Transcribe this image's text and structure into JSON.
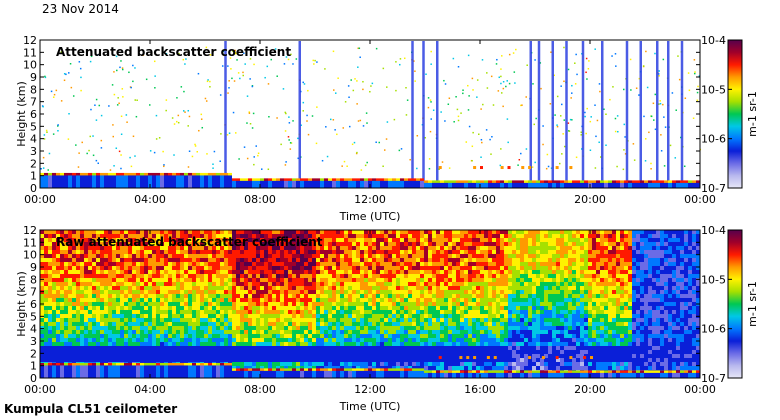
{
  "header": {
    "date": "23 Nov 2014"
  },
  "footer": {
    "instrument": "Kumpula CL51 ceilometer"
  },
  "colorbar": {
    "ticks": [
      "10-4",
      "10-5",
      "10-6",
      "10-7"
    ],
    "unit": "m-1 sr-1",
    "colors": [
      "#e8e8f8",
      "#b8b8ee",
      "#6b6be6",
      "#0a1fd8",
      "#0078ff",
      "#00c8e6",
      "#00c853",
      "#a6e000",
      "#fff200",
      "#ff9a00",
      "#ff1a00",
      "#a0002a",
      "#56004c"
    ]
  },
  "chart_data": [
    {
      "type": "heatmap",
      "title": "Attenuated backscatter coefficient",
      "xlabel": "Time (UTC)",
      "ylabel": "Height (km)",
      "xlim": [
        0,
        24
      ],
      "ylim": [
        0,
        12
      ],
      "x_ticks": [
        "00:00",
        "04:00",
        "08:00",
        "12:00",
        "16:00",
        "20:00",
        "00:00"
      ],
      "y_ticks": [
        "0",
        "1",
        "2",
        "3",
        "4",
        "5",
        "6",
        "7",
        "8",
        "9",
        "10",
        "11",
        "12"
      ],
      "color_scale": "log",
      "color_range": [
        1e-07,
        0.0001
      ],
      "color_unit": "m-1 sr-1",
      "features": {
        "boundary_layer_top_km": 1.1,
        "cloud_base_layer_km": 1.7,
        "cloud_base_layer_time_range_h": [
          14.5,
          20.2
        ],
        "precipitation_streak_times_h": [
          6.7,
          9.4,
          13.5,
          13.9,
          14.4,
          17.8,
          18.1,
          18.6,
          19.1,
          19.7,
          20.4,
          21.3,
          21.8,
          22.4,
          22.8,
          23.3
        ]
      }
    },
    {
      "type": "heatmap",
      "title": "Raw attenuated backscatter coefficient",
      "xlabel": "Time (UTC)",
      "ylabel": "Height (km)",
      "xlim": [
        0,
        24
      ],
      "ylim": [
        0,
        12
      ],
      "x_ticks": [
        "00:00",
        "04:00",
        "08:00",
        "12:00",
        "16:00",
        "20:00",
        "00:00"
      ],
      "y_ticks": [
        "0",
        "1",
        "2",
        "3",
        "4",
        "5",
        "6",
        "7",
        "8",
        "9",
        "10",
        "11",
        "12"
      ],
      "color_scale": "log",
      "color_range": [
        1e-07,
        0.0001
      ],
      "color_unit": "m-1 sr-1",
      "features": {
        "boundary_layer_top_km": 1.1,
        "cloud_base_layer_km": 1.7,
        "cloud_base_layer_time_range_h": [
          14.5,
          20.2
        ],
        "high_noise_time_range_h": [
          0,
          21.5
        ],
        "low_noise_time_range_h": [
          21.5,
          24
        ]
      }
    }
  ]
}
